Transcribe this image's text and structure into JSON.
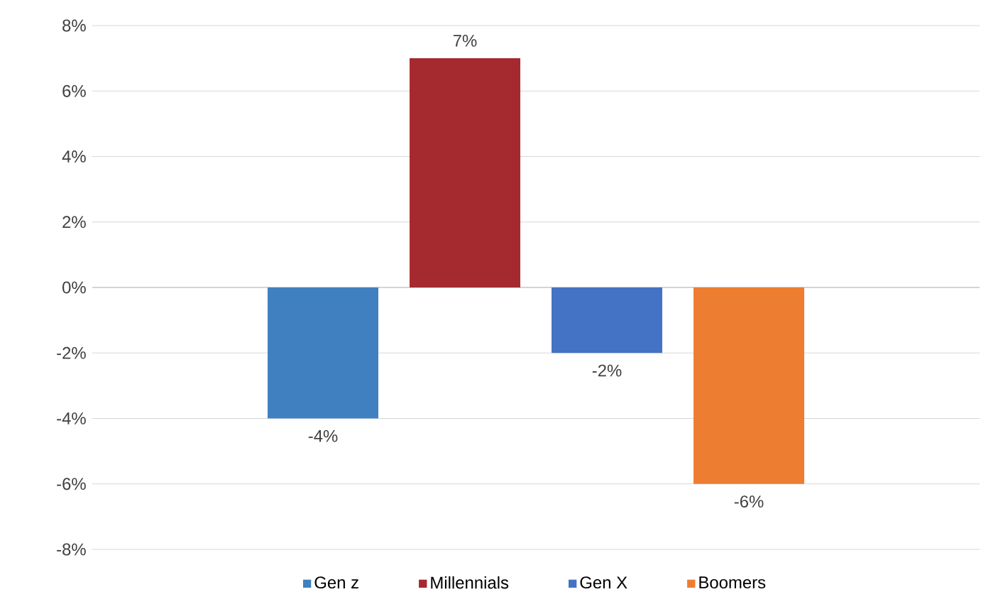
{
  "chart_data": {
    "type": "bar",
    "categories": [
      null
    ],
    "series": [
      {
        "name": "Gen z",
        "color": "#4180c0",
        "values": [
          -4
        ],
        "value_labels": [
          "-4%"
        ]
      },
      {
        "name": "Millennials",
        "color": "#a52a2f",
        "values": [
          7
        ],
        "value_labels": [
          "7%"
        ]
      },
      {
        "name": "Gen X",
        "color": "#4472c4",
        "values": [
          -2
        ],
        "value_labels": [
          "-2%"
        ]
      },
      {
        "name": "Boomers",
        "color": "#ed7d31",
        "values": [
          -6
        ],
        "value_labels": [
          "-6%"
        ]
      }
    ],
    "ylim": [
      -8,
      8
    ],
    "yticks": [
      {
        "value": -8,
        "label": "-8%"
      },
      {
        "value": -6,
        "label": "-6%"
      },
      {
        "value": -4,
        "label": "-4%"
      },
      {
        "value": -2,
        "label": "-2%"
      },
      {
        "value": 0,
        "label": "0%"
      },
      {
        "value": 2,
        "label": "2%"
      },
      {
        "value": 4,
        "label": "4%"
      },
      {
        "value": 6,
        "label": "6%"
      },
      {
        "value": 8,
        "label": "8%"
      }
    ],
    "grid": "y",
    "legend": "bottom"
  }
}
